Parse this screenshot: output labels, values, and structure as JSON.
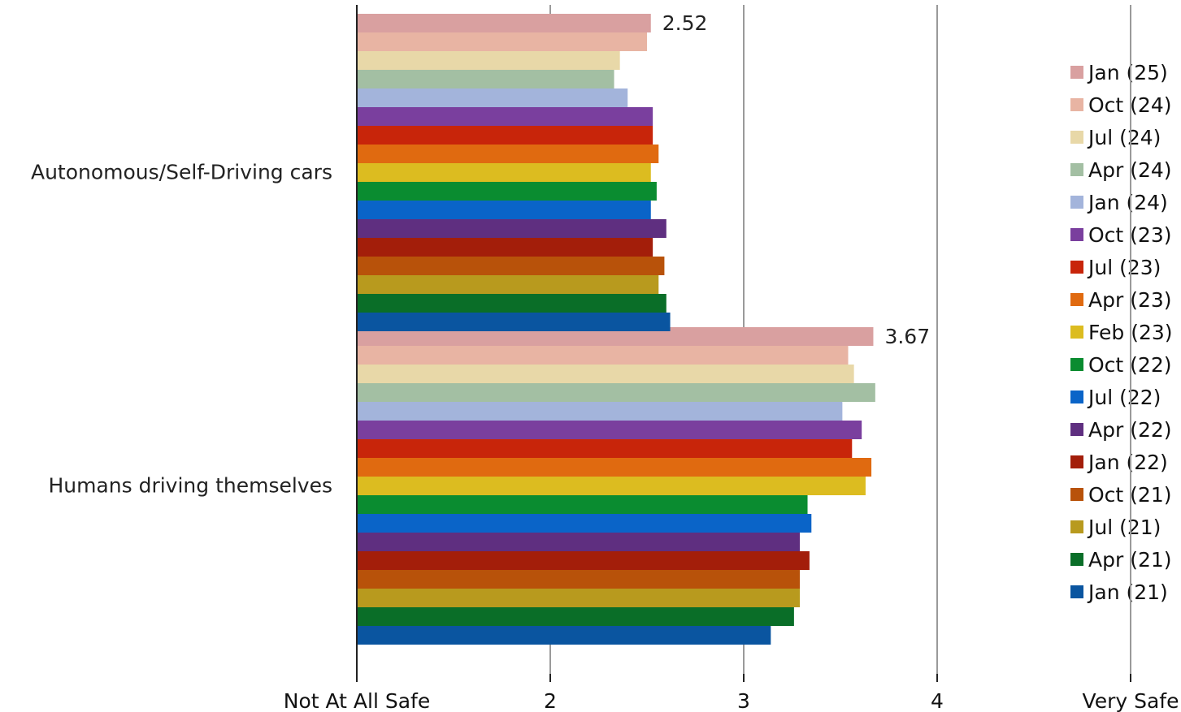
{
  "chart_data": {
    "type": "bar",
    "orientation": "horizontal",
    "categories": [
      "Autonomous/Self-Driving cars",
      "Humans driving themselves"
    ],
    "xlim": [
      1,
      5
    ],
    "x_ticks": [
      {
        "value": 1,
        "label": "Not At All Safe"
      },
      {
        "value": 2,
        "label": "2"
      },
      {
        "value": 3,
        "label": "3"
      },
      {
        "value": 4,
        "label": "4"
      },
      {
        "value": 5,
        "label": "Very Safe"
      }
    ],
    "grid": true,
    "legend_position": "right",
    "series": [
      {
        "name": "Jan (25)",
        "color": "#d9a0a0",
        "values": [
          2.52,
          3.67
        ],
        "label": [
          "2.52",
          "3.67"
        ]
      },
      {
        "name": "Oct (24)",
        "color": "#e8b4a3",
        "values": [
          2.5,
          3.54
        ]
      },
      {
        "name": "Jul (24)",
        "color": "#e8d8a8",
        "values": [
          2.36,
          3.57
        ]
      },
      {
        "name": "Apr (24)",
        "color": "#a3bfa3",
        "values": [
          2.33,
          3.68
        ]
      },
      {
        "name": "Jan (24)",
        "color": "#a3b4db",
        "values": [
          2.4,
          3.51
        ]
      },
      {
        "name": "Oct (23)",
        "color": "#7a3f9e",
        "values": [
          2.53,
          3.61
        ]
      },
      {
        "name": "Jul (23)",
        "color": "#c8250a",
        "values": [
          2.53,
          3.56
        ]
      },
      {
        "name": "Apr (23)",
        "color": "#e06a10",
        "values": [
          2.56,
          3.66
        ]
      },
      {
        "name": "Feb (23)",
        "color": "#dcbc20",
        "values": [
          2.52,
          3.63
        ]
      },
      {
        "name": "Oct (22)",
        "color": "#0a8c30",
        "values": [
          2.55,
          3.33
        ]
      },
      {
        "name": "Jul (22)",
        "color": "#0a64c8",
        "values": [
          2.52,
          3.35
        ]
      },
      {
        "name": "Apr (22)",
        "color": "#5f2f80",
        "values": [
          2.6,
          3.29
        ]
      },
      {
        "name": "Jan (22)",
        "color": "#a31e0a",
        "values": [
          2.53,
          3.34
        ]
      },
      {
        "name": "Oct (21)",
        "color": "#b8520a",
        "values": [
          2.59,
          3.29
        ]
      },
      {
        "name": "Jul (21)",
        "color": "#b89a1e",
        "values": [
          2.56,
          3.29
        ]
      },
      {
        "name": "Apr (21)",
        "color": "#0a6e28",
        "values": [
          2.6,
          3.26
        ]
      },
      {
        "name": "Jan (21)",
        "color": "#0a55a0",
        "values": [
          2.62,
          3.14
        ]
      }
    ]
  }
}
